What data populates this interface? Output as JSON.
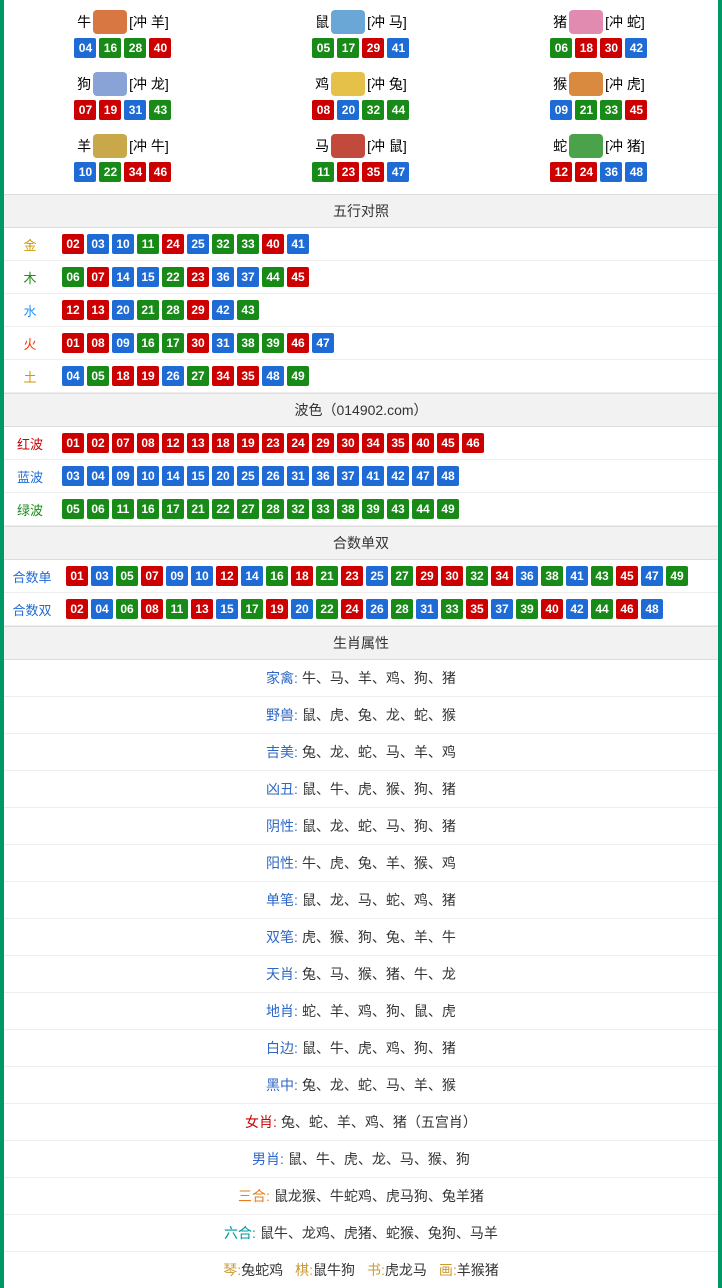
{
  "colors": {
    "red": "#cc0000",
    "blue": "#1e6bd6",
    "green": "#188a18",
    "gold": "#cc9900",
    "wood": "#188a18",
    "water": "#1e90ff",
    "fire": "#ff3300",
    "earth": "#cc9900",
    "redwave": "#cc0000",
    "bluewave": "#1e6bd6",
    "greenwave": "#188a18",
    "label_blue": "#2e67c5",
    "label_green": "#188a18",
    "label_red": "#cc0000",
    "label_orange": "#e67e22",
    "label_teal": "#009999",
    "label_gold": "#cc9933",
    "label_purple": "#8844cc"
  },
  "zodiac_icon_colors": {
    "牛": "#d97742",
    "鼠": "#6aa7d6",
    "猪": "#e28bb0",
    "狗": "#8aa3d6",
    "鸡": "#e6c14a",
    "猴": "#d98a3e",
    "羊": "#c9a84a",
    "马": "#c24a3c",
    "蛇": "#4aa34a"
  },
  "zodiacs": [
    {
      "name": "牛",
      "clash": "[冲 羊]",
      "nums": [
        {
          "n": "04",
          "c": "blue"
        },
        {
          "n": "16",
          "c": "green"
        },
        {
          "n": "28",
          "c": "green"
        },
        {
          "n": "40",
          "c": "red"
        }
      ]
    },
    {
      "name": "鼠",
      "clash": "[冲 马]",
      "nums": [
        {
          "n": "05",
          "c": "green"
        },
        {
          "n": "17",
          "c": "green"
        },
        {
          "n": "29",
          "c": "red"
        },
        {
          "n": "41",
          "c": "blue"
        }
      ]
    },
    {
      "name": "猪",
      "clash": "[冲 蛇]",
      "nums": [
        {
          "n": "06",
          "c": "green"
        },
        {
          "n": "18",
          "c": "red"
        },
        {
          "n": "30",
          "c": "red"
        },
        {
          "n": "42",
          "c": "blue"
        }
      ]
    },
    {
      "name": "狗",
      "clash": "[冲 龙]",
      "nums": [
        {
          "n": "07",
          "c": "red"
        },
        {
          "n": "19",
          "c": "red"
        },
        {
          "n": "31",
          "c": "blue"
        },
        {
          "n": "43",
          "c": "green"
        }
      ]
    },
    {
      "name": "鸡",
      "clash": "[冲 兔]",
      "nums": [
        {
          "n": "08",
          "c": "red"
        },
        {
          "n": "20",
          "c": "blue"
        },
        {
          "n": "32",
          "c": "green"
        },
        {
          "n": "44",
          "c": "green"
        }
      ]
    },
    {
      "name": "猴",
      "clash": "[冲 虎]",
      "nums": [
        {
          "n": "09",
          "c": "blue"
        },
        {
          "n": "21",
          "c": "green"
        },
        {
          "n": "33",
          "c": "green"
        },
        {
          "n": "45",
          "c": "red"
        }
      ]
    },
    {
      "name": "羊",
      "clash": "[冲 牛]",
      "nums": [
        {
          "n": "10",
          "c": "blue"
        },
        {
          "n": "22",
          "c": "green"
        },
        {
          "n": "34",
          "c": "red"
        },
        {
          "n": "46",
          "c": "red"
        }
      ]
    },
    {
      "name": "马",
      "clash": "[冲 鼠]",
      "nums": [
        {
          "n": "11",
          "c": "green"
        },
        {
          "n": "23",
          "c": "red"
        },
        {
          "n": "35",
          "c": "red"
        },
        {
          "n": "47",
          "c": "blue"
        }
      ]
    },
    {
      "name": "蛇",
      "clash": "[冲 猪]",
      "nums": [
        {
          "n": "12",
          "c": "red"
        },
        {
          "n": "24",
          "c": "red"
        },
        {
          "n": "36",
          "c": "blue"
        },
        {
          "n": "48",
          "c": "blue"
        }
      ]
    }
  ],
  "sections": {
    "wuxing_title": "五行对照",
    "bose_title": "波色（014902.com）",
    "heshu_title": "合数单双",
    "shengxiao_title": "生肖属性"
  },
  "wuxing": [
    {
      "label": "金",
      "label_color": "gold",
      "nums": [
        {
          "n": "02",
          "c": "red"
        },
        {
          "n": "03",
          "c": "blue"
        },
        {
          "n": "10",
          "c": "blue"
        },
        {
          "n": "11",
          "c": "green"
        },
        {
          "n": "24",
          "c": "red"
        },
        {
          "n": "25",
          "c": "blue"
        },
        {
          "n": "32",
          "c": "green"
        },
        {
          "n": "33",
          "c": "green"
        },
        {
          "n": "40",
          "c": "red"
        },
        {
          "n": "41",
          "c": "blue"
        }
      ]
    },
    {
      "label": "木",
      "label_color": "wood",
      "nums": [
        {
          "n": "06",
          "c": "green"
        },
        {
          "n": "07",
          "c": "red"
        },
        {
          "n": "14",
          "c": "blue"
        },
        {
          "n": "15",
          "c": "blue"
        },
        {
          "n": "22",
          "c": "green"
        },
        {
          "n": "23",
          "c": "red"
        },
        {
          "n": "36",
          "c": "blue"
        },
        {
          "n": "37",
          "c": "blue"
        },
        {
          "n": "44",
          "c": "green"
        },
        {
          "n": "45",
          "c": "red"
        }
      ]
    },
    {
      "label": "水",
      "label_color": "water",
      "nums": [
        {
          "n": "12",
          "c": "red"
        },
        {
          "n": "13",
          "c": "red"
        },
        {
          "n": "20",
          "c": "blue"
        },
        {
          "n": "21",
          "c": "green"
        },
        {
          "n": "28",
          "c": "green"
        },
        {
          "n": "29",
          "c": "red"
        },
        {
          "n": "42",
          "c": "blue"
        },
        {
          "n": "43",
          "c": "green"
        }
      ]
    },
    {
      "label": "火",
      "label_color": "fire",
      "nums": [
        {
          "n": "01",
          "c": "red"
        },
        {
          "n": "08",
          "c": "red"
        },
        {
          "n": "09",
          "c": "blue"
        },
        {
          "n": "16",
          "c": "green"
        },
        {
          "n": "17",
          "c": "green"
        },
        {
          "n": "30",
          "c": "red"
        },
        {
          "n": "31",
          "c": "blue"
        },
        {
          "n": "38",
          "c": "green"
        },
        {
          "n": "39",
          "c": "green"
        },
        {
          "n": "46",
          "c": "red"
        },
        {
          "n": "47",
          "c": "blue"
        }
      ]
    },
    {
      "label": "土",
      "label_color": "earth",
      "nums": [
        {
          "n": "04",
          "c": "blue"
        },
        {
          "n": "05",
          "c": "green"
        },
        {
          "n": "18",
          "c": "red"
        },
        {
          "n": "19",
          "c": "red"
        },
        {
          "n": "26",
          "c": "blue"
        },
        {
          "n": "27",
          "c": "green"
        },
        {
          "n": "34",
          "c": "red"
        },
        {
          "n": "35",
          "c": "red"
        },
        {
          "n": "48",
          "c": "blue"
        },
        {
          "n": "49",
          "c": "green"
        }
      ]
    }
  ],
  "bose": [
    {
      "label": "红波",
      "label_color": "redwave",
      "nums": [
        {
          "n": "01",
          "c": "red"
        },
        {
          "n": "02",
          "c": "red"
        },
        {
          "n": "07",
          "c": "red"
        },
        {
          "n": "08",
          "c": "red"
        },
        {
          "n": "12",
          "c": "red"
        },
        {
          "n": "13",
          "c": "red"
        },
        {
          "n": "18",
          "c": "red"
        },
        {
          "n": "19",
          "c": "red"
        },
        {
          "n": "23",
          "c": "red"
        },
        {
          "n": "24",
          "c": "red"
        },
        {
          "n": "29",
          "c": "red"
        },
        {
          "n": "30",
          "c": "red"
        },
        {
          "n": "34",
          "c": "red"
        },
        {
          "n": "35",
          "c": "red"
        },
        {
          "n": "40",
          "c": "red"
        },
        {
          "n": "45",
          "c": "red"
        },
        {
          "n": "46",
          "c": "red"
        }
      ]
    },
    {
      "label": "蓝波",
      "label_color": "bluewave",
      "nums": [
        {
          "n": "03",
          "c": "blue"
        },
        {
          "n": "04",
          "c": "blue"
        },
        {
          "n": "09",
          "c": "blue"
        },
        {
          "n": "10",
          "c": "blue"
        },
        {
          "n": "14",
          "c": "blue"
        },
        {
          "n": "15",
          "c": "blue"
        },
        {
          "n": "20",
          "c": "blue"
        },
        {
          "n": "25",
          "c": "blue"
        },
        {
          "n": "26",
          "c": "blue"
        },
        {
          "n": "31",
          "c": "blue"
        },
        {
          "n": "36",
          "c": "blue"
        },
        {
          "n": "37",
          "c": "blue"
        },
        {
          "n": "41",
          "c": "blue"
        },
        {
          "n": "42",
          "c": "blue"
        },
        {
          "n": "47",
          "c": "blue"
        },
        {
          "n": "48",
          "c": "blue"
        }
      ]
    },
    {
      "label": "绿波",
      "label_color": "greenwave",
      "nums": [
        {
          "n": "05",
          "c": "green"
        },
        {
          "n": "06",
          "c": "green"
        },
        {
          "n": "11",
          "c": "green"
        },
        {
          "n": "16",
          "c": "green"
        },
        {
          "n": "17",
          "c": "green"
        },
        {
          "n": "21",
          "c": "green"
        },
        {
          "n": "22",
          "c": "green"
        },
        {
          "n": "27",
          "c": "green"
        },
        {
          "n": "28",
          "c": "green"
        },
        {
          "n": "32",
          "c": "green"
        },
        {
          "n": "33",
          "c": "green"
        },
        {
          "n": "38",
          "c": "green"
        },
        {
          "n": "39",
          "c": "green"
        },
        {
          "n": "43",
          "c": "green"
        },
        {
          "n": "44",
          "c": "green"
        },
        {
          "n": "49",
          "c": "green"
        }
      ]
    }
  ],
  "heshu": [
    {
      "label": "合数单",
      "label_color": "bluewave",
      "nums": [
        {
          "n": "01",
          "c": "red"
        },
        {
          "n": "03",
          "c": "blue"
        },
        {
          "n": "05",
          "c": "green"
        },
        {
          "n": "07",
          "c": "red"
        },
        {
          "n": "09",
          "c": "blue"
        },
        {
          "n": "10",
          "c": "blue"
        },
        {
          "n": "12",
          "c": "red"
        },
        {
          "n": "14",
          "c": "blue"
        },
        {
          "n": "16",
          "c": "green"
        },
        {
          "n": "18",
          "c": "red"
        },
        {
          "n": "21",
          "c": "green"
        },
        {
          "n": "23",
          "c": "red"
        },
        {
          "n": "25",
          "c": "blue"
        },
        {
          "n": "27",
          "c": "green"
        },
        {
          "n": "29",
          "c": "red"
        },
        {
          "n": "30",
          "c": "red"
        },
        {
          "n": "32",
          "c": "green"
        },
        {
          "n": "34",
          "c": "red"
        },
        {
          "n": "36",
          "c": "blue"
        },
        {
          "n": "38",
          "c": "green"
        },
        {
          "n": "41",
          "c": "blue"
        },
        {
          "n": "43",
          "c": "green"
        },
        {
          "n": "45",
          "c": "red"
        },
        {
          "n": "47",
          "c": "blue"
        },
        {
          "n": "49",
          "c": "green"
        }
      ]
    },
    {
      "label": "合数双",
      "label_color": "bluewave",
      "nums": [
        {
          "n": "02",
          "c": "red"
        },
        {
          "n": "04",
          "c": "blue"
        },
        {
          "n": "06",
          "c": "green"
        },
        {
          "n": "08",
          "c": "red"
        },
        {
          "n": "11",
          "c": "green"
        },
        {
          "n": "13",
          "c": "red"
        },
        {
          "n": "15",
          "c": "blue"
        },
        {
          "n": "17",
          "c": "green"
        },
        {
          "n": "19",
          "c": "red"
        },
        {
          "n": "20",
          "c": "blue"
        },
        {
          "n": "22",
          "c": "green"
        },
        {
          "n": "24",
          "c": "red"
        },
        {
          "n": "26",
          "c": "blue"
        },
        {
          "n": "28",
          "c": "green"
        },
        {
          "n": "31",
          "c": "blue"
        },
        {
          "n": "33",
          "c": "green"
        },
        {
          "n": "35",
          "c": "red"
        },
        {
          "n": "37",
          "c": "blue"
        },
        {
          "n": "39",
          "c": "green"
        },
        {
          "n": "40",
          "c": "red"
        },
        {
          "n": "42",
          "c": "blue"
        },
        {
          "n": "44",
          "c": "green"
        },
        {
          "n": "46",
          "c": "red"
        },
        {
          "n": "48",
          "c": "blue"
        }
      ]
    }
  ],
  "attrs": [
    {
      "label": "家禽:",
      "label_color": "label_blue",
      "value": "牛、马、羊、鸡、狗、猪"
    },
    {
      "label": "野兽:",
      "label_color": "label_blue",
      "value": "鼠、虎、兔、龙、蛇、猴"
    },
    {
      "label": "吉美:",
      "label_color": "label_blue",
      "value": "兔、龙、蛇、马、羊、鸡"
    },
    {
      "label": "凶丑:",
      "label_color": "label_blue",
      "value": "鼠、牛、虎、猴、狗、猪"
    },
    {
      "label": "阴性:",
      "label_color": "label_blue",
      "value": "鼠、龙、蛇、马、狗、猪"
    },
    {
      "label": "阳性:",
      "label_color": "label_blue",
      "value": "牛、虎、兔、羊、猴、鸡"
    },
    {
      "label": "单笔:",
      "label_color": "label_blue",
      "value": "鼠、龙、马、蛇、鸡、猪"
    },
    {
      "label": "双笔:",
      "label_color": "label_blue",
      "value": "虎、猴、狗、兔、羊、牛"
    },
    {
      "label": "天肖:",
      "label_color": "label_blue",
      "value": "兔、马、猴、猪、牛、龙"
    },
    {
      "label": "地肖:",
      "label_color": "label_blue",
      "value": "蛇、羊、鸡、狗、鼠、虎"
    },
    {
      "label": "白边:",
      "label_color": "label_blue",
      "value": "鼠、牛、虎、鸡、狗、猪"
    },
    {
      "label": "黑中:",
      "label_color": "label_blue",
      "value": "兔、龙、蛇、马、羊、猴"
    },
    {
      "label": "女肖:",
      "label_color": "label_red",
      "value": "兔、蛇、羊、鸡、猪（五宫肖）"
    },
    {
      "label": "男肖:",
      "label_color": "label_blue",
      "value": "鼠、牛、虎、龙、马、猴、狗"
    },
    {
      "label": "三合:",
      "label_color": "label_orange",
      "value": "鼠龙猴、牛蛇鸡、虎马狗、兔羊猪"
    },
    {
      "label": "六合:",
      "label_color": "label_teal",
      "value": "鼠牛、龙鸡、虎猪、蛇猴、兔狗、马羊"
    }
  ],
  "bottom": [
    {
      "label": "琴:",
      "label_color": "label_gold",
      "value": "兔蛇鸡"
    },
    {
      "label": "棋:",
      "label_color": "label_gold",
      "value": "鼠牛狗"
    },
    {
      "label": "书:",
      "label_color": "label_gold",
      "value": "虎龙马"
    },
    {
      "label": "画:",
      "label_color": "label_gold",
      "value": "羊猴猪"
    }
  ]
}
